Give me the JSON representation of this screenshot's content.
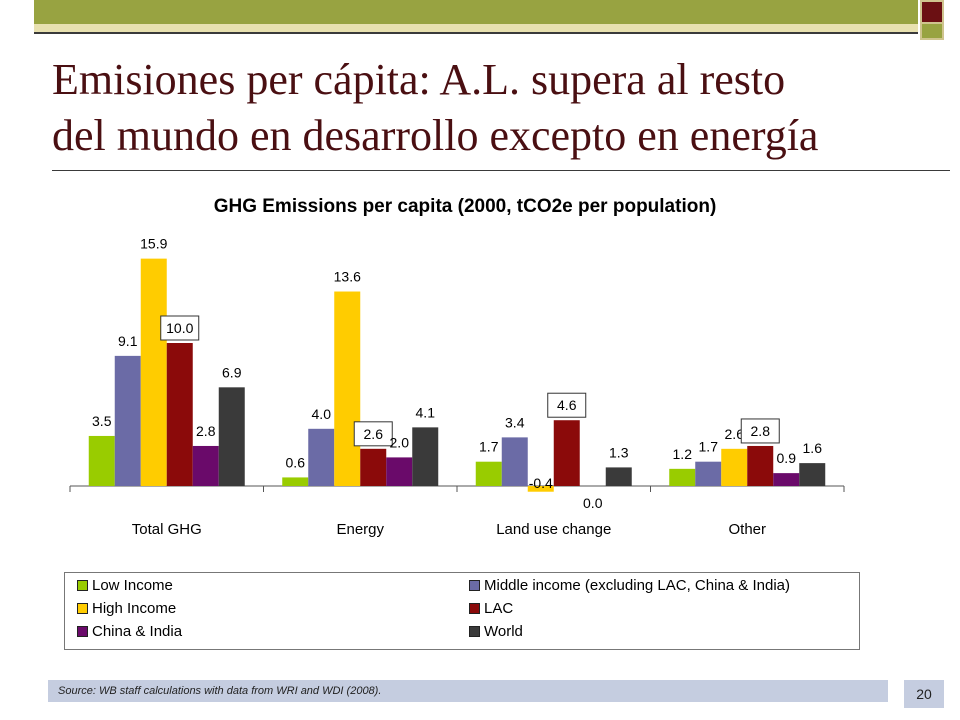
{
  "slide": {
    "title_line1": "Emisiones per cápita: A.L. supera al resto",
    "title_line2": "del mundo en desarrollo excepto en energía",
    "source": "Source: WB staff calculations with data from WRI and WDI (2008).",
    "page_number": "20"
  },
  "chart_data": {
    "type": "bar",
    "title": "GHG Emissions per capita (2000, tCO2e per population)",
    "categories": [
      "Total GHG",
      "Energy",
      "Land use change",
      "Other"
    ],
    "series": [
      {
        "name": "Low Income",
        "color": "#99cc00",
        "values": [
          3.5,
          0.6,
          1.7,
          1.2
        ],
        "labels": [
          "3.5",
          "0.6",
          "1.7",
          "1.2"
        ]
      },
      {
        "name": "Middle income (excluding LAC, China & India)",
        "color": "#6b6ba6",
        "values": [
          9.1,
          4.0,
          3.4,
          1.7
        ],
        "labels": [
          "9.1",
          "4.0",
          "3.4",
          "1.7"
        ]
      },
      {
        "name": "High Income",
        "color": "#ffcc00",
        "values": [
          15.9,
          13.6,
          -0.4,
          2.6
        ],
        "labels": [
          "15.9",
          "13.6",
          "-0.4",
          "2.6"
        ]
      },
      {
        "name": "LAC",
        "color": "#8b0a0a",
        "values": [
          10.0,
          2.6,
          4.6,
          2.8
        ],
        "labels": [
          "10.0",
          "2.6",
          "4.6",
          "2.8"
        ],
        "boxed": true
      },
      {
        "name": "China & India",
        "color": "#6a0a6a",
        "values": [
          2.8,
          2.0,
          0.0,
          0.9
        ],
        "labels": [
          "2.8",
          "2.0",
          "0.0",
          "0.9"
        ]
      },
      {
        "name": "World",
        "color": "#3a3a3a",
        "values": [
          6.9,
          4.1,
          1.3,
          1.6
        ],
        "labels": [
          "6.9",
          "4.1",
          "1.3",
          "1.6"
        ]
      }
    ],
    "legend_position": "bottom",
    "grid": false
  }
}
